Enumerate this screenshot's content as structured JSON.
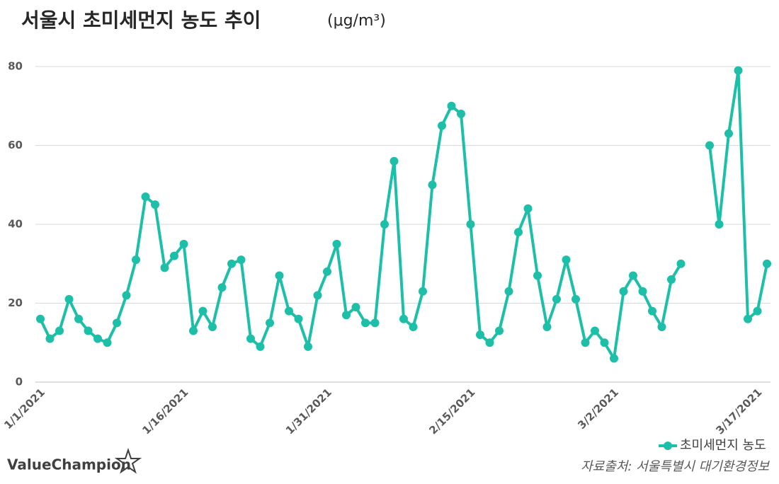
{
  "chart_data": {
    "type": "line",
    "title": "서울시 초미세먼지 농도 추이",
    "unit": "(μg/m³)",
    "source": "자료출처: 서울특별시 대기환경정보",
    "brand": "ValueChampion",
    "categories": [
      "1/1/2021",
      null,
      null,
      null,
      null,
      null,
      null,
      null,
      null,
      null,
      null,
      null,
      null,
      null,
      null,
      "1/16/2021",
      null,
      null,
      null,
      null,
      null,
      null,
      null,
      null,
      null,
      null,
      null,
      null,
      null,
      null,
      "1/31/2021",
      null,
      null,
      null,
      null,
      null,
      null,
      null,
      null,
      null,
      null,
      null,
      null,
      null,
      null,
      "2/15/2021",
      null,
      null,
      null,
      null,
      null,
      null,
      null,
      null,
      null,
      null,
      null,
      null,
      null,
      null,
      "3/2/2021",
      null,
      null,
      null,
      null,
      null,
      null,
      null,
      null,
      null,
      null,
      null,
      null,
      null,
      null,
      "3/17/2021",
      null
    ],
    "series": [
      {
        "name": "초미세먼지 농도",
        "color": "#1dbfa8",
        "values": [
          16,
          11,
          13,
          21,
          16,
          13,
          11,
          10,
          15,
          22,
          31,
          47,
          45,
          29,
          32,
          35,
          13,
          18,
          14,
          24,
          30,
          31,
          11,
          9,
          15,
          27,
          18,
          16,
          9,
          22,
          28,
          35,
          17,
          19,
          15,
          15,
          40,
          56,
          16,
          14,
          23,
          50,
          65,
          70,
          68,
          40,
          12,
          10,
          13,
          23,
          38,
          44,
          27,
          14,
          21,
          31,
          21,
          10,
          13,
          10,
          6,
          23,
          27,
          23,
          18,
          14,
          26,
          30,
          null,
          null,
          60,
          40,
          63,
          79,
          16,
          18,
          30
        ]
      }
    ],
    "ylim": [
      0,
      80
    ],
    "yticks": [
      0,
      20,
      40,
      60,
      80
    ],
    "grid": true,
    "legend": "bottom-right"
  }
}
